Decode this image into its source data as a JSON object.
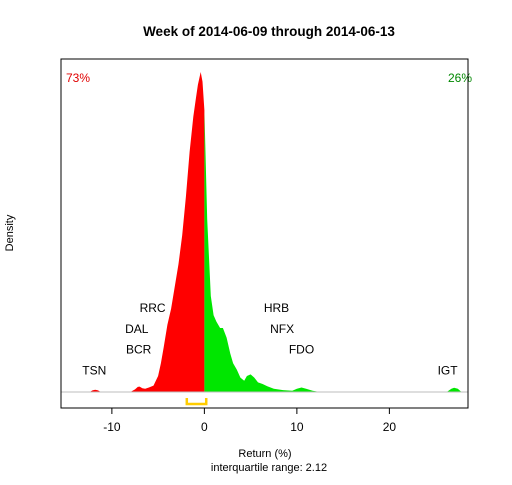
{
  "chart_data": {
    "type": "area",
    "title": "Week of 2014-06-09 through 2014-06-13",
    "xlabel": "Return (%)",
    "ylabel": "Density",
    "subtitle": "interquartile range: 2.12",
    "xlim": [
      -15.5,
      28.5
    ],
    "ylim": [
      0,
      1
    ],
    "x_ticks": [
      -10,
      0,
      10,
      20
    ],
    "x_tick_labels": [
      "-10",
      "0",
      "10",
      "20"
    ],
    "split_at": 0,
    "negative_share_label": "73%",
    "positive_share_label": "26%",
    "colors": {
      "negative": "#ff0000",
      "positive": "#00e600",
      "negative_share": "#e00000",
      "positive_share": "#008800",
      "iqr_bracket": "#ffcc00",
      "baseline": "#bebebe",
      "axis": "#000000"
    },
    "iqr": [
      -1.9,
      0.2
    ],
    "density": {
      "x": [
        -12.4,
        -12.1,
        -11.8,
        -11.5,
        -11.2,
        -8.0,
        -7.5,
        -7.2,
        -7.0,
        -6.7,
        -6.4,
        -6.0,
        -5.5,
        -5.0,
        -4.7,
        -4.4,
        -4.0,
        -3.6,
        -3.2,
        -2.8,
        -2.4,
        -2.0,
        -1.6,
        -1.2,
        -0.9,
        -0.7,
        -0.4,
        -0.2,
        0.0,
        0.3,
        0.7,
        1.0,
        1.3,
        1.7,
        2.0,
        2.4,
        2.8,
        3.1,
        3.5,
        3.9,
        4.3,
        4.6,
        5.0,
        5.4,
        5.8,
        6.3,
        6.8,
        7.5,
        8.5,
        9.5,
        10.0,
        10.5,
        11.0,
        11.7,
        12.5,
        26.2,
        26.7,
        27.0,
        27.4,
        27.8
      ],
      "y": [
        0,
        0.005,
        0.007,
        0.005,
        0,
        0,
        0.008,
        0.016,
        0.017,
        0.012,
        0.01,
        0.014,
        0.02,
        0.05,
        0.09,
        0.14,
        0.21,
        0.26,
        0.33,
        0.4,
        0.49,
        0.61,
        0.75,
        0.86,
        0.92,
        0.96,
        1.0,
        0.97,
        0.88,
        0.54,
        0.3,
        0.24,
        0.22,
        0.2,
        0.2,
        0.17,
        0.12,
        0.09,
        0.07,
        0.045,
        0.035,
        0.05,
        0.055,
        0.045,
        0.03,
        0.025,
        0.018,
        0.01,
        0.006,
        0.004,
        0.01,
        0.014,
        0.01,
        0.004,
        0,
        0,
        0.01,
        0.013,
        0.01,
        0
      ]
    },
    "annotations": [
      {
        "label": "TSN",
        "x": -11.9,
        "y": 0.055
      },
      {
        "label": "BCR",
        "x": -7.1,
        "y": 0.12
      },
      {
        "label": "DAL",
        "x": -7.3,
        "y": 0.185
      },
      {
        "label": "RRC",
        "x": -5.6,
        "y": 0.25
      },
      {
        "label": "HRB",
        "x": 7.8,
        "y": 0.25
      },
      {
        "label": "NFX",
        "x": 8.4,
        "y": 0.185
      },
      {
        "label": "FDO",
        "x": 10.5,
        "y": 0.12
      },
      {
        "label": "IGT",
        "x": 26.3,
        "y": 0.055
      }
    ]
  }
}
